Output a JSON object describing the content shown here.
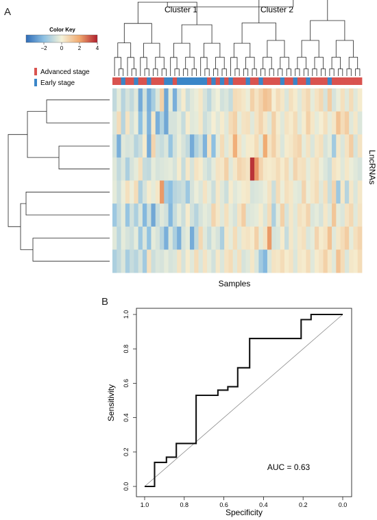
{
  "panel_a": {
    "label": "A",
    "color_key": {
      "title": "Color Key",
      "ticks": [
        "−2",
        "0",
        "2",
        "4"
      ]
    },
    "legend": [
      {
        "label": "Advanced stage",
        "color": "#d9534f"
      },
      {
        "label": "Early stage",
        "color": "#3a86c8"
      }
    ],
    "clusters": [
      "Cluster 1",
      "Cluster 2"
    ],
    "xlabel": "Samples",
    "ylabel": "LncRNAs"
  },
  "panel_b": {
    "label": "B",
    "auc_text": "AUC = 0.63"
  },
  "chart_data": [
    {
      "type": "heatmap",
      "title": "",
      "xlabel": "Samples",
      "ylabel": "LncRNAs",
      "color_scale": {
        "min": -4,
        "max": 4,
        "low": "#2e6cb8",
        "mid": "#f5f2d8",
        "high": "#b01f2e"
      },
      "color_key_ticks": [
        -2,
        0,
        2,
        4
      ],
      "stage_bar": [
        "A",
        "A",
        "E",
        "A",
        "A",
        "E",
        "A",
        "A",
        "E",
        "A",
        "A",
        "A",
        "E",
        "E",
        "A",
        "E",
        "E",
        "E",
        "E",
        "E",
        "E",
        "E",
        "A",
        "E",
        "A",
        "E",
        "A",
        "E",
        "A",
        "A",
        "A",
        "E",
        "A",
        "A",
        "E",
        "A",
        "A",
        "A",
        "A",
        "E",
        "A",
        "A",
        "E",
        "A",
        "A",
        "E",
        "A",
        "A",
        "A",
        "A",
        "E",
        "A",
        "A",
        "A",
        "A",
        "A",
        "A",
        "A"
      ],
      "stage_legend": {
        "A": "Advanced stage",
        "E": "Early stage"
      },
      "clusters": [
        "Cluster 1",
        "Cluster 2"
      ],
      "values": [
        [
          -1.0,
          -0.3,
          -1.2,
          -0.6,
          -1.0,
          -0.4,
          -2.5,
          -0.7,
          -2.4,
          -1.5,
          -0.5,
          0.9,
          -2.6,
          -0.3,
          -2.4,
          -0.6,
          0.2,
          -0.8,
          -0.4,
          -0.2,
          0.3,
          -0.6,
          -1.1,
          -0.4,
          -0.1,
          -0.7,
          -0.5,
          -0.9,
          0.6,
          0.5,
          0.3,
          -0.2,
          0.9,
          0.4,
          0.8,
          1.3,
          1.1,
          0.1,
          0.6,
          0.3,
          -0.5,
          0.5,
          0.2,
          -0.4,
          0.4,
          0.7,
          -0.3,
          0.4,
          0.7,
          -0.6,
          1.0,
          -0.6,
          -0.2,
          0.5,
          -0.4,
          0.6,
          -0.4,
          0.2
        ],
        [
          -0.5,
          0.6,
          -1.2,
          0.4,
          -0.7,
          -0.2,
          -2.0,
          -0.4,
          -2.3,
          0.3,
          -2.4,
          -1.3,
          -2.6,
          -0.6,
          -0.6,
          -0.3,
          -0.9,
          0.2,
          -0.4,
          -0.3,
          0.3,
          -0.8,
          -0.5,
          0.1,
          -0.4,
          0.2,
          -0.4,
          0.6,
          0.9,
          -0.3,
          0.4,
          0.5,
          -0.4,
          0.4,
          0.8,
          0.3,
          -0.4,
          0.9,
          0.2,
          -0.4,
          0.4,
          0.2,
          0.6,
          -0.4,
          0.2,
          0.9,
          0.3,
          -0.3,
          0.1,
          0.5,
          -0.3,
          0.3,
          1.3,
          0.6,
          1.0,
          -0.4,
          0.3,
          -0.5
        ],
        [
          -0.7,
          -2.4,
          -0.4,
          -0.6,
          -0.5,
          -1.2,
          -0.8,
          0.2,
          -2.5,
          0.8,
          -0.7,
          -0.9,
          -0.5,
          -1.8,
          -0.7,
          -0.2,
          -0.6,
          -1.0,
          -2.5,
          -1.3,
          -0.8,
          -2.3,
          0.4,
          -2.0,
          -0.3,
          0.6,
          -0.4,
          0.3,
          1.8,
          0.4,
          -0.3,
          0.2,
          0.2,
          0.6,
          -0.4,
          1.9,
          0.4,
          0.9,
          0.3,
          -0.5,
          0.2,
          0.3,
          0.6,
          0.8,
          -0.3,
          0.4,
          -0.5,
          0.3,
          0.5,
          -0.6,
          -0.3,
          -1.6,
          0.3,
          -0.5,
          0.4,
          1.0,
          -0.6,
          0.4
        ],
        [
          -0.4,
          -1.0,
          -0.5,
          -1.4,
          -0.6,
          -0.3,
          0.5,
          -0.9,
          -1.0,
          -0.3,
          -0.6,
          -0.5,
          -0.4,
          -0.3,
          -0.6,
          0.2,
          -0.9,
          0.3,
          -0.6,
          0.4,
          0.2,
          -0.5,
          -0.8,
          -0.3,
          0.4,
          0.3,
          0.9,
          -0.4,
          0.3,
          0.8,
          0.6,
          0.4,
          3.7,
          2.2,
          0.8,
          0.3,
          0.2,
          0.3,
          0.6,
          0.2,
          0.6,
          -0.3,
          0.8,
          0.4,
          0.5,
          -0.3,
          0.3,
          0.5,
          -0.2,
          -0.5,
          -0.8,
          0.4,
          0.2,
          -0.4,
          0.3,
          -0.2,
          -0.4,
          -0.6
        ],
        [
          -0.3,
          -0.8,
          -0.2,
          0.5,
          -0.2,
          0.6,
          -1.4,
          -0.6,
          0.2,
          -0.3,
          0.3,
          2.2,
          -1.6,
          -2.0,
          -1.2,
          -1.0,
          -0.8,
          -1.7,
          -0.6,
          -0.2,
          -0.5,
          0.4,
          -0.3,
          -0.8,
          0.3,
          -0.4,
          -0.8,
          0.2,
          -0.4,
          -0.2,
          0.2,
          0.3,
          -0.6,
          -0.5,
          -0.4,
          -0.2,
          0.4,
          -0.8,
          0.6,
          -0.2,
          0.5,
          0.3,
          -0.3,
          -0.4,
          0.8,
          -0.2,
          0.3,
          0.6,
          -0.4,
          0.5,
          -0.8,
          0.8,
          -1.7,
          0.3,
          -1.2,
          0.3,
          -0.5,
          0.3
        ],
        [
          -1.7,
          -0.9,
          -0.3,
          -1.8,
          -0.7,
          -1.4,
          -0.5,
          -2.2,
          -0.8,
          -2.6,
          -0.9,
          -0.4,
          -0.7,
          -2.2,
          -0.9,
          -0.3,
          -0.8,
          0.2,
          -0.7,
          -1.2,
          -0.6,
          -0.3,
          -0.5,
          0.8,
          0.3,
          -0.4,
          0.5,
          -0.3,
          -0.6,
          0.4,
          1.0,
          -0.5,
          -0.4,
          -0.3,
          0.2,
          -0.5,
          0.6,
          -1.4,
          -0.3,
          0.9,
          -0.6,
          0.3,
          -0.4,
          0.5,
          0.3,
          0.8,
          -0.5,
          -0.3,
          -0.6,
          0.3,
          -0.4,
          1.2,
          -0.3,
          -0.5,
          0.4,
          0.7,
          -0.4,
          0.4
        ],
        [
          -0.4,
          -1.1,
          -0.3,
          -0.6,
          -0.8,
          -0.3,
          -1.7,
          -0.5,
          -1.9,
          -0.3,
          -0.6,
          -1.2,
          -2.4,
          -0.5,
          -1.4,
          -2.4,
          -0.6,
          -0.3,
          -2.5,
          -1.0,
          0.7,
          -0.4,
          -0.9,
          -0.3,
          -0.6,
          -1.4,
          0.3,
          -0.3,
          0.6,
          -0.4,
          0.3,
          0.4,
          0.2,
          0.9,
          -0.3,
          0.4,
          2.2,
          -0.6,
          -0.5,
          0.2,
          -0.9,
          0.3,
          -0.4,
          0.3,
          0.5,
          -0.5,
          -0.3,
          0.8,
          0.2,
          0.4,
          1.3,
          -0.4,
          0.3,
          0.6,
          1.0,
          -0.3,
          0.5,
          0.8
        ],
        [
          -1.4,
          -1.0,
          -0.5,
          -1.5,
          -0.9,
          -1.2,
          -0.6,
          -1.6,
          0.5,
          -0.8,
          -0.5,
          -0.6,
          -0.3,
          -0.6,
          -0.5,
          0.4,
          -0.6,
          0.2,
          -0.4,
          0.6,
          -0.5,
          0.4,
          -0.3,
          -0.7,
          0.3,
          -0.5,
          0.4,
          0.6,
          -0.4,
          0.5,
          -0.6,
          -0.4,
          0.3,
          -0.5,
          -1.6,
          -2.2,
          -0.5,
          0.4,
          0.3,
          0.6,
          0.2,
          0.4,
          -0.5,
          0.3,
          0.2,
          0.6,
          -0.4,
          0.2,
          0.4,
          0.9,
          0.3,
          -0.4,
          1.3,
          0.6,
          -0.5,
          0.3,
          0.2,
          0.6
        ]
      ]
    },
    {
      "type": "line",
      "title": "",
      "xlabel": "Specificity",
      "ylabel": "Sensitivity",
      "xlim": [
        1.0,
        0.0
      ],
      "ylim": [
        0.0,
        1.0
      ],
      "x_ticks": [
        "1.0",
        "0.8",
        "0.6",
        "0.4",
        "0.2",
        "0.0"
      ],
      "y_ticks": [
        "0.0",
        "0.2",
        "0.4",
        "0.6",
        "0.8",
        "1.0"
      ],
      "series": [
        {
          "x": [
            1.0,
            0.95,
            0.95,
            0.89,
            0.89,
            0.84,
            0.84,
            0.74,
            0.74,
            0.63,
            0.63,
            0.58,
            0.58,
            0.53,
            0.53,
            0.47,
            0.47,
            0.21,
            0.21,
            0.16,
            0.16,
            0.0
          ],
          "y": [
            0.0,
            0.0,
            0.14,
            0.14,
            0.17,
            0.17,
            0.25,
            0.25,
            0.53,
            0.53,
            0.56,
            0.56,
            0.58,
            0.58,
            0.69,
            0.69,
            0.86,
            0.86,
            0.97,
            0.97,
            1.0,
            1.0
          ]
        }
      ],
      "reference_line": {
        "x": [
          1.0,
          0.0
        ],
        "y": [
          0.0,
          1.0
        ]
      },
      "annotation": "AUC = 0.63"
    }
  ]
}
